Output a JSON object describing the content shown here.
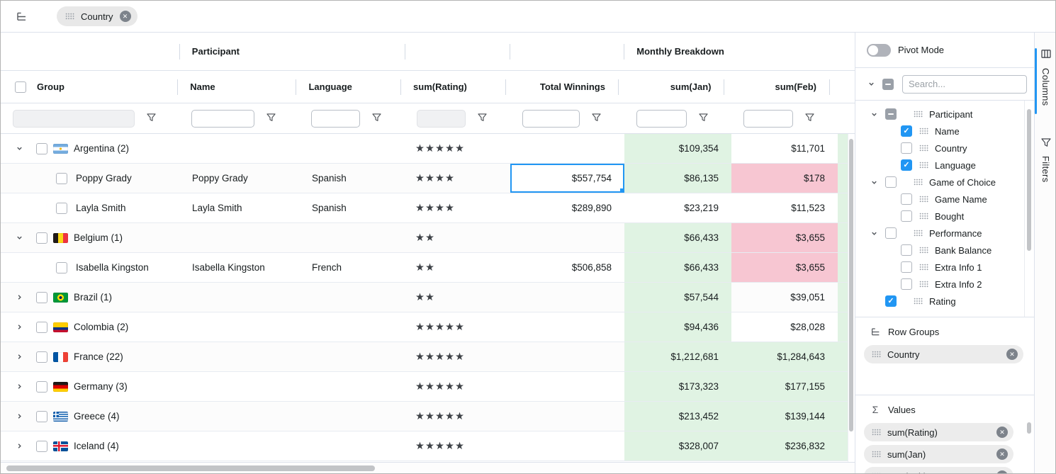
{
  "toolbar": {
    "row_group_chips": [
      {
        "label": "Country"
      }
    ]
  },
  "grid": {
    "group_headers": [
      {
        "label": ""
      },
      {
        "label": "Participant"
      },
      {
        "label": ""
      },
      {
        "label": ""
      },
      {
        "label": "Monthly Breakdown"
      }
    ],
    "columns": [
      {
        "label": "Group",
        "has_checkbox": true,
        "filter_disabled": true
      },
      {
        "label": "Name",
        "filter_disabled": false
      },
      {
        "label": "Language",
        "filter_disabled": false
      },
      {
        "label": "sum(Rating)",
        "filter_disabled": true
      },
      {
        "label": "Total Winnings",
        "filter_disabled": false
      },
      {
        "label": "sum(Jan)",
        "filter_disabled": false
      },
      {
        "label": "sum(Feb)",
        "filter_disabled": false
      }
    ],
    "filter_values": [
      "",
      "",
      "",
      "",
      "",
      "",
      ""
    ],
    "rows": [
      {
        "type": "group",
        "expanded": true,
        "flag": "argentina",
        "label": "Argentina (2)",
        "name": "",
        "language": "",
        "rating": "★★★★★",
        "winnings": "",
        "jan": "$109,354",
        "feb": "$11,701",
        "jan_bg": "green",
        "feb_bg": "none"
      },
      {
        "type": "leaf",
        "label": "Poppy Grady",
        "name": "Poppy Grady",
        "language": "Spanish",
        "rating": "★★★★",
        "winnings": "$557,754",
        "winnings_selected": true,
        "jan": "$86,135",
        "feb": "$178",
        "jan_bg": "green",
        "feb_bg": "pink"
      },
      {
        "type": "leaf",
        "label": "Layla Smith",
        "name": "Layla Smith",
        "language": "Spanish",
        "rating": "★★★★",
        "winnings": "$289,890",
        "jan": "$23,219",
        "feb": "$11,523",
        "jan_bg": "none",
        "feb_bg": "none"
      },
      {
        "type": "group",
        "expanded": true,
        "flag": "belgium",
        "label": "Belgium (1)",
        "name": "",
        "language": "",
        "rating": "★★",
        "winnings": "",
        "jan": "$66,433",
        "feb": "$3,655",
        "jan_bg": "green",
        "feb_bg": "pink"
      },
      {
        "type": "leaf",
        "label": "Isabella Kingston",
        "name": "Isabella Kingston",
        "language": "French",
        "rating": "★★",
        "winnings": "$506,858",
        "jan": "$66,433",
        "feb": "$3,655",
        "jan_bg": "green",
        "feb_bg": "pink"
      },
      {
        "type": "group",
        "expanded": false,
        "flag": "brazil",
        "label": "Brazil (1)",
        "name": "",
        "language": "",
        "rating": "★★",
        "winnings": "",
        "jan": "$57,544",
        "feb": "$39,051",
        "jan_bg": "green",
        "feb_bg": "none"
      },
      {
        "type": "group",
        "expanded": false,
        "flag": "colombia",
        "label": "Colombia (2)",
        "name": "",
        "language": "",
        "rating": "★★★★★",
        "winnings": "",
        "jan": "$94,436",
        "feb": "$28,028",
        "jan_bg": "green",
        "feb_bg": "none"
      },
      {
        "type": "group",
        "expanded": false,
        "flag": "france",
        "label": "France (22)",
        "name": "",
        "language": "",
        "rating": "★★★★★",
        "winnings": "",
        "jan": "$1,212,681",
        "feb": "$1,284,643",
        "jan_bg": "green",
        "feb_bg": "green"
      },
      {
        "type": "group",
        "expanded": false,
        "flag": "germany",
        "label": "Germany (3)",
        "name": "",
        "language": "",
        "rating": "★★★★★",
        "winnings": "",
        "jan": "$173,323",
        "feb": "$177,155",
        "jan_bg": "green",
        "feb_bg": "green"
      },
      {
        "type": "group",
        "expanded": false,
        "flag": "greece",
        "label": "Greece (4)",
        "name": "",
        "language": "",
        "rating": "★★★★★",
        "winnings": "",
        "jan": "$213,452",
        "feb": "$139,144",
        "jan_bg": "green",
        "feb_bg": "green"
      },
      {
        "type": "group",
        "expanded": false,
        "flag": "iceland",
        "label": "Iceland (4)",
        "name": "",
        "language": "",
        "rating": "★★★★★",
        "winnings": "",
        "jan": "$328,007",
        "feb": "$236,832",
        "jan_bg": "green",
        "feb_bg": "green"
      }
    ]
  },
  "side_panel": {
    "pivot_mode_label": "Pivot Mode",
    "search_placeholder": "Search...",
    "tree": [
      {
        "level": 0,
        "expanded": true,
        "checkbox": "indeterminate",
        "label": "Participant"
      },
      {
        "level": 1,
        "checkbox": "checked",
        "label": "Name"
      },
      {
        "level": 1,
        "checkbox": "unchecked",
        "label": "Country"
      },
      {
        "level": 1,
        "checkbox": "checked",
        "label": "Language"
      },
      {
        "level": 0,
        "expanded": true,
        "checkbox": "unchecked",
        "label": "Game of Choice"
      },
      {
        "level": 1,
        "checkbox": "unchecked",
        "label": "Game Name"
      },
      {
        "level": 1,
        "checkbox": "unchecked",
        "label": "Bought"
      },
      {
        "level": 0,
        "expanded": true,
        "checkbox": "unchecked",
        "label": "Performance"
      },
      {
        "level": 1,
        "checkbox": "unchecked",
        "label": "Bank Balance"
      },
      {
        "level": 1,
        "checkbox": "unchecked",
        "label": "Extra Info 1"
      },
      {
        "level": 1,
        "checkbox": "unchecked",
        "label": "Extra Info 2"
      },
      {
        "level": 0,
        "expanded": null,
        "checkbox": "checked",
        "label": "Rating"
      }
    ],
    "row_groups": {
      "title": "Row Groups",
      "chips": [
        {
          "label": "Country"
        }
      ]
    },
    "values": {
      "title": "Values",
      "chips": [
        {
          "label": "sum(Rating)"
        },
        {
          "label": "sum(Jan)"
        },
        {
          "label": "sum(Feb)"
        }
      ]
    },
    "tabs": [
      {
        "label": "Columns",
        "active": true
      },
      {
        "label": "Filters",
        "active": false
      }
    ]
  },
  "colors": {
    "accent": "#2196f3",
    "positive_cell_bg": "#e0f3e3",
    "negative_cell_bg": "#f7c6d2"
  }
}
